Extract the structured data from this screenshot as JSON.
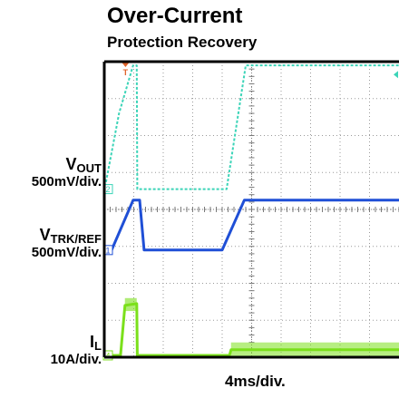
{
  "title": "Over-Current",
  "subtitle": "Protection Recovery",
  "time_scale": "4ms/div.",
  "channels": {
    "vout": {
      "name": "V",
      "sub": "OUT",
      "scale": "500mV/div.",
      "marker": "2",
      "color": "#3cd4b8"
    },
    "vtrk": {
      "name": "V",
      "sub": "TRK/REF",
      "scale": "500mV/div.",
      "marker": "1",
      "color": "#1f4fd6"
    },
    "il": {
      "name": "I",
      "sub": "L",
      "scale": "10A/div.",
      "marker": "4",
      "color": "#7be01b"
    }
  },
  "trigger_marker": "T",
  "chart_data": {
    "type": "line",
    "title": "Over-Current",
    "subtitle": "Protection Recovery",
    "xlabel": "4ms/div.",
    "x_unit": "div",
    "xlim": [
      0,
      10
    ],
    "ylim": [
      -4,
      4
    ],
    "grid": true,
    "series": [
      {
        "name": "VOUT",
        "scale": "500mV/div.",
        "x": [
          0,
          0.5,
          0.98,
          1.1,
          1.12,
          1.15,
          4.15,
          4.8,
          4.85,
          10
        ],
        "y": [
          0.5,
          2.6,
          3.9,
          3.9,
          0.55,
          0.55,
          0.55,
          3.9,
          3.9,
          3.9
        ]
      },
      {
        "name": "VTRK/REF",
        "scale": "500mV/div.",
        "x": [
          0,
          0.25,
          0.98,
          1.2,
          1.35,
          4.0,
          4.75,
          4.85,
          10
        ],
        "y": [
          -1.15,
          -1.1,
          0.25,
          0.25,
          -1.1,
          -1.1,
          0.25,
          0.25,
          0.25
        ]
      },
      {
        "name": "IL",
        "scale": "10A/div.",
        "x": [
          0,
          0.55,
          0.7,
          1.1,
          1.12,
          4.25,
          4.3,
          10
        ],
        "y": [
          -3.95,
          -3.95,
          -2.6,
          -2.55,
          -3.95,
          -3.95,
          -3.8,
          -3.8
        ]
      }
    ]
  }
}
